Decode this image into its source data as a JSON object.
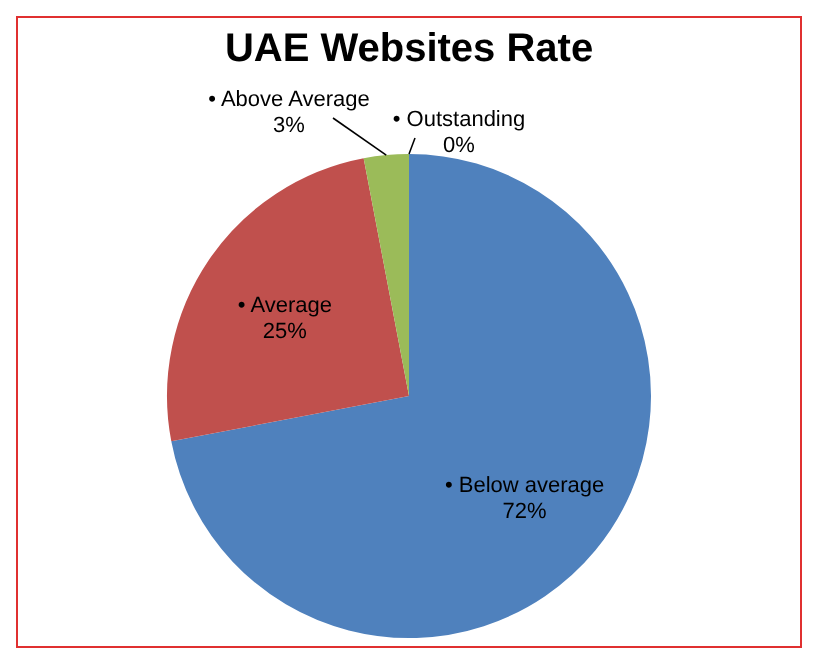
{
  "chart_data": {
    "type": "pie",
    "title": "UAE Websites Rate",
    "categories": [
      "• Below average",
      "• Average",
      "• Above Average",
      "• Outstanding"
    ],
    "values": [
      72,
      25,
      3,
      0
    ],
    "value_labels": [
      "72%",
      "25%",
      "3%",
      "0%"
    ],
    "colors": [
      "#4f81bd",
      "#c0504d",
      "#9bbb59",
      "#8064a2"
    ],
    "legend": false
  }
}
